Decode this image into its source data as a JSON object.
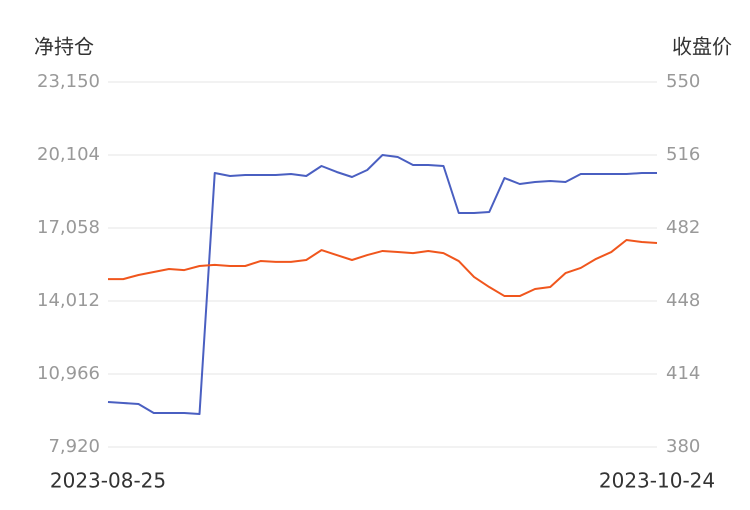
{
  "chart_data": {
    "type": "line",
    "y_label": "净持仓",
    "y2_label": "收盘价",
    "categories": [
      "2023-08-25",
      null,
      null,
      null,
      null,
      null,
      null,
      null,
      null,
      null,
      null,
      null,
      null,
      null,
      null,
      null,
      null,
      null,
      null,
      null,
      null,
      null,
      null,
      null,
      null,
      null,
      null,
      null,
      null,
      null,
      null,
      null,
      null,
      null,
      null,
      null,
      "2023-10-24"
    ],
    "series": [
      {
        "name": "净持仓",
        "color": "#4a5fc1",
        "axis": "y",
        "values": [
          9797,
          9756,
          9714,
          9338,
          9338,
          9338,
          9297,
          19353,
          19228,
          19270,
          19270,
          19270,
          19311,
          19228,
          19645,
          19395,
          19186,
          19478,
          20104,
          20021,
          19687,
          19687,
          19645,
          17684,
          17684,
          17726,
          19144,
          18894,
          18977,
          19019,
          18977,
          19311,
          19311,
          19311,
          19311,
          19353,
          19353
        ]
      },
      {
        "name": "收盘价",
        "color": "#f0561d",
        "axis": "y2",
        "values": [
          458.2,
          458.2,
          460.1,
          461.5,
          462.9,
          462.4,
          464.3,
          464.8,
          464.3,
          464.3,
          466.6,
          466.2,
          466.2,
          467.1,
          471.7,
          469.4,
          467.1,
          469.4,
          471.3,
          470.8,
          470.3,
          471.3,
          470.3,
          466.6,
          459.2,
          454.5,
          450.3,
          450.3,
          453.6,
          454.5,
          461.0,
          463.4,
          467.6,
          470.8,
          476.4,
          475.5,
          475.0
        ]
      }
    ],
    "ylim": [
      7920,
      23150
    ],
    "yticks": [
      {
        "value": 7920,
        "label": "7,920"
      },
      {
        "value": 10966,
        "label": "10,966"
      },
      {
        "value": 14012,
        "label": "14,012"
      },
      {
        "value": 17058,
        "label": "17,058"
      },
      {
        "value": 20104,
        "label": "20,104"
      },
      {
        "value": 23150,
        "label": "23,150"
      }
    ],
    "y2lim": [
      380,
      550
    ],
    "y2ticks": [
      380,
      414,
      448,
      482,
      516,
      550
    ],
    "grid": true
  }
}
